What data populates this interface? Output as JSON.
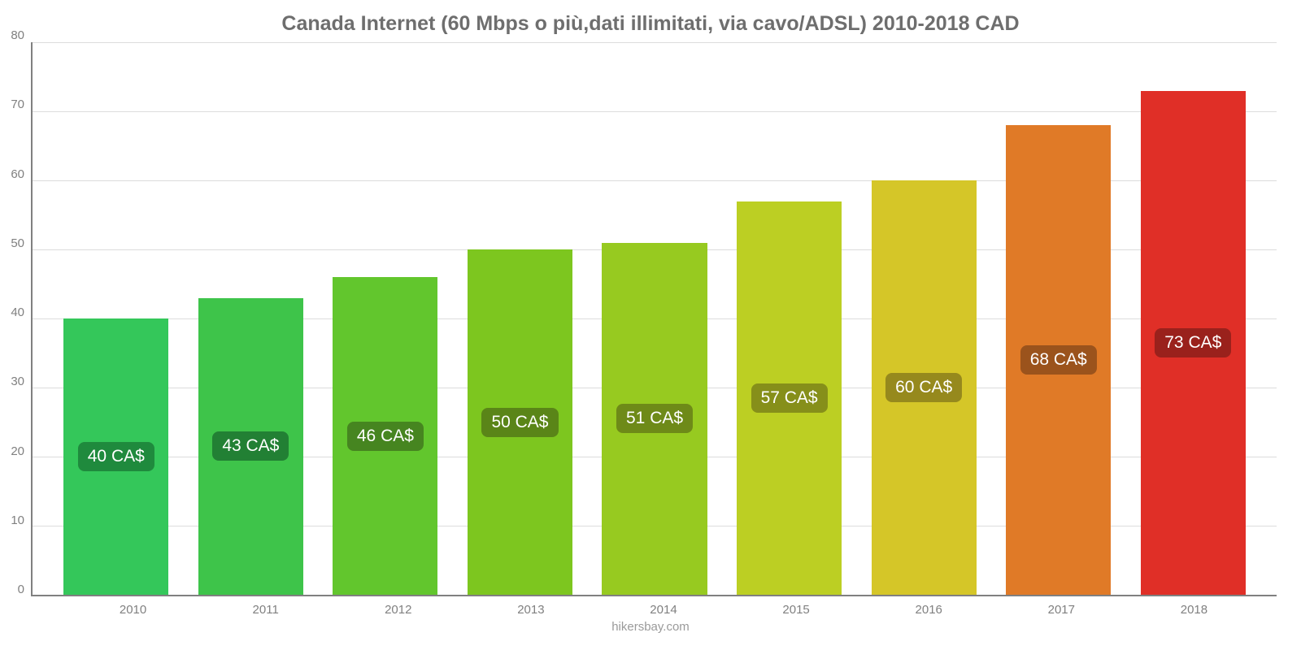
{
  "chart": {
    "type": "bar",
    "title": "Canada Internet (60 Mbps o più,dati illimitati, via cavo/ADSL) 2010-2018 CAD",
    "title_fontsize": 25,
    "title_color": "#6e6e6e",
    "background_color": "#ffffff",
    "categories": [
      "2010",
      "2011",
      "2012",
      "2013",
      "2014",
      "2015",
      "2016",
      "2017",
      "2018"
    ],
    "values": [
      40,
      43,
      46,
      50,
      51,
      57,
      60,
      68,
      73
    ],
    "value_labels": [
      "40 CA$",
      "43 CA$",
      "46 CA$",
      "50 CA$",
      "51 CA$",
      "57 CA$",
      "60 CA$",
      "68 CA$",
      "73 CA$"
    ],
    "bar_colors": [
      "#34c75a",
      "#3ec44a",
      "#62c62d",
      "#7dc61f",
      "#97ca20",
      "#bccf23",
      "#d5c628",
      "#e07a27",
      "#e02f27"
    ],
    "label_bg_colors": [
      "#1f8a3d",
      "#228034",
      "#468520",
      "#5a8518",
      "#6e8a18",
      "#868f1a",
      "#96891d",
      "#9b531c",
      "#9a211c"
    ],
    "value_label_text_color": "#ffffff",
    "value_label_fontsize": 21,
    "ylim": [
      0,
      80
    ],
    "yticks": [
      0,
      10,
      20,
      30,
      40,
      50,
      60,
      70,
      80
    ],
    "axis_color": "#808080",
    "tick_fontsize": 15,
    "tick_color": "#808080",
    "grid_color": "#dcdcdc",
    "bar_width": 0.78,
    "footer": "hikersbay.com",
    "footer_color": "#9a9a9a",
    "footer_fontsize": 15
  }
}
